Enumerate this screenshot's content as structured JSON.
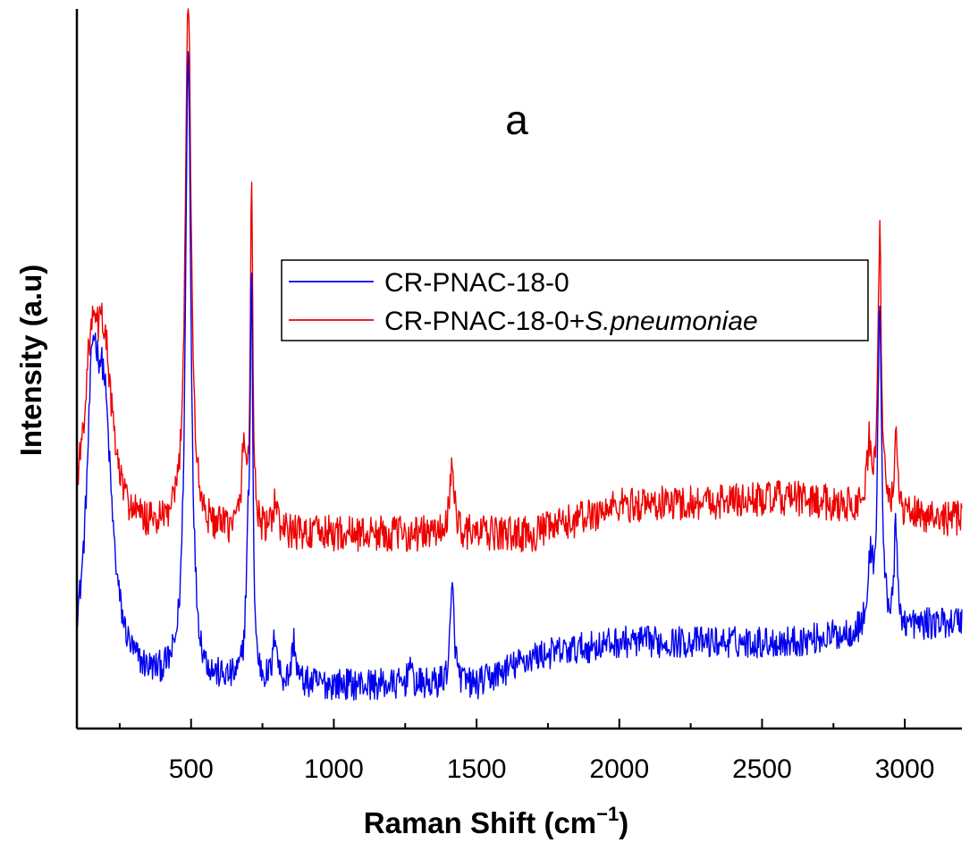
{
  "chart_data": {
    "type": "line",
    "panel_label": "a",
    "xlabel": "Raman Shift (cm",
    "xlabel_superscript": "−1",
    "xlabel_close": ")",
    "ylabel": "Intensity (a.u)",
    "xlim": [
      100,
      3200
    ],
    "ylim": [
      0,
      1.0
    ],
    "x_ticks": [
      500,
      1000,
      1500,
      2000,
      2500,
      3000
    ],
    "x_tick_labels": [
      "500",
      "1000",
      "1500",
      "2000",
      "2500",
      "3000"
    ],
    "x_minor_ticks": [
      250,
      750,
      1250,
      1750,
      2250,
      2750
    ],
    "y_ticks_shown": false,
    "legend": {
      "position": "upper-center",
      "entries": [
        {
          "prefix": "CR-PNAC-18-0",
          "italic": ""
        },
        {
          "prefix": "CR-PNAC-18-0+",
          "italic": "S.pneumoniae"
        }
      ]
    },
    "series": [
      {
        "name": "CR-PNAC-18-0",
        "color": "#0000ee",
        "baseline": 0.06,
        "noise": 0.022,
        "noise_trend": [
          [
            100,
            0.0
          ],
          [
            1500,
            0.0
          ],
          [
            1700,
            0.04
          ],
          [
            2000,
            0.06
          ],
          [
            2600,
            0.06
          ],
          [
            3200,
            0.09
          ]
        ],
        "peaks": [
          {
            "x": 155,
            "height": 0.33,
            "width": 25
          },
          {
            "x": 195,
            "height": 0.34,
            "width": 35
          },
          {
            "x": 490,
            "height": 0.87,
            "width": 12
          },
          {
            "x": 700,
            "height": 0.17,
            "width": 9
          },
          {
            "x": 712,
            "height": 0.53,
            "width": 5
          },
          {
            "x": 795,
            "height": 0.07,
            "width": 8
          },
          {
            "x": 860,
            "height": 0.06,
            "width": 8
          },
          {
            "x": 1265,
            "height": 0.04,
            "width": 5
          },
          {
            "x": 1415,
            "height": 0.13,
            "width": 9
          },
          {
            "x": 2880,
            "height": 0.09,
            "width": 10
          },
          {
            "x": 2912,
            "height": 0.45,
            "width": 8
          },
          {
            "x": 2968,
            "height": 0.13,
            "width": 7
          }
        ]
      },
      {
        "name": "CR-PNAC-18-0+S.pneumoniae",
        "color": "#ee0000",
        "baseline": 0.27,
        "noise": 0.025,
        "noise_trend": [
          [
            100,
            0.0
          ],
          [
            1700,
            0.0
          ],
          [
            2000,
            0.04
          ],
          [
            2600,
            0.05
          ],
          [
            3200,
            0.02
          ]
        ],
        "peaks": [
          {
            "x": 150,
            "height": 0.2,
            "width": 30
          },
          {
            "x": 195,
            "height": 0.23,
            "width": 35
          },
          {
            "x": 490,
            "height": 0.76,
            "width": 12
          },
          {
            "x": 685,
            "height": 0.11,
            "width": 10
          },
          {
            "x": 712,
            "height": 0.48,
            "width": 5
          },
          {
            "x": 795,
            "height": 0.05,
            "width": 7
          },
          {
            "x": 1415,
            "height": 0.09,
            "width": 10
          },
          {
            "x": 2875,
            "height": 0.09,
            "width": 8
          },
          {
            "x": 2912,
            "height": 0.38,
            "width": 7
          },
          {
            "x": 2968,
            "height": 0.12,
            "width": 5
          }
        ]
      }
    ]
  }
}
